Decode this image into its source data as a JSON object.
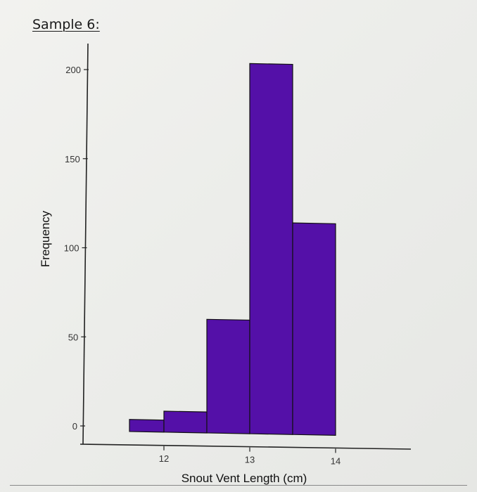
{
  "sample_title": "Sample 6:",
  "chart_data": {
    "type": "bar",
    "title": "",
    "xlabel": "Snout Vent Length (cm)",
    "ylabel": "Frequency",
    "bins": [
      {
        "x0": 11.5,
        "x1": 12.0,
        "value": 4
      },
      {
        "x0": 12.0,
        "x1": 12.5,
        "value": 9
      },
      {
        "x0": 12.5,
        "x1": 13.0,
        "value": 61
      },
      {
        "x0": 13.0,
        "x1": 13.5,
        "value": 205
      },
      {
        "x0": 13.5,
        "x1": 14.0,
        "value": 116
      }
    ],
    "xticks": [
      {
        "value": 12,
        "label": "12"
      },
      {
        "value": 13,
        "label": "13"
      },
      {
        "value": 14,
        "label": "14"
      }
    ],
    "yticks": [
      {
        "value": 0,
        "label": "0"
      },
      {
        "value": 50,
        "label": "50"
      },
      {
        "value": 100,
        "label": "100"
      },
      {
        "value": 150,
        "label": "150"
      },
      {
        "value": 200,
        "label": "200"
      }
    ],
    "ylim": [
      0,
      205
    ],
    "bar_color": "#5410a8",
    "grid": false,
    "legend": "none"
  }
}
